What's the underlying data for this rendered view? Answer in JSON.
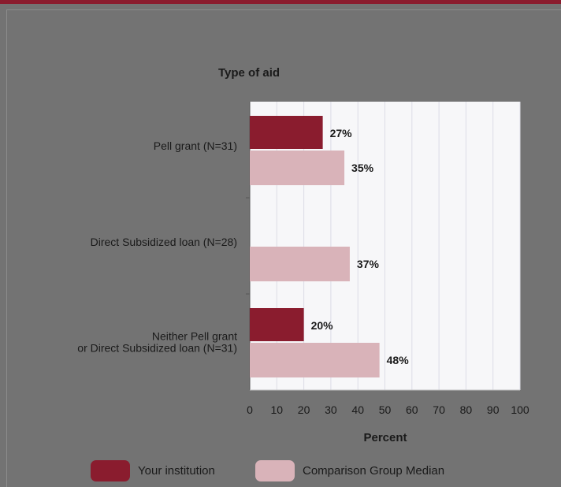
{
  "chart_data": {
    "type": "bar",
    "orientation": "horizontal",
    "title": "Type of aid",
    "xlabel": "Percent",
    "xlim": [
      0,
      100
    ],
    "xticks": [
      0,
      10,
      20,
      30,
      40,
      50,
      60,
      70,
      80,
      90,
      100
    ],
    "grid": true,
    "legend_position": "bottom",
    "categories": [
      [
        "Pell grant  (N=31)"
      ],
      [
        "Direct Subsidized loan (N=28)"
      ],
      [
        "Neither Pell grant",
        "or Direct Subsidized loan (N=31)"
      ]
    ],
    "series": [
      {
        "name": "Your institution",
        "color": "#8a1c2e",
        "values": [
          27,
          null,
          20
        ],
        "labels": [
          "27%",
          "",
          "20%"
        ]
      },
      {
        "name": "Comparison Group Median",
        "color": "#d9b3b9",
        "values": [
          35,
          37,
          48
        ],
        "labels": [
          "35%",
          "37%",
          "48%"
        ]
      }
    ]
  },
  "colors": {
    "page_background": "#737373",
    "plot_background": "#f7f7f9",
    "accent": "#8a1c2e"
  }
}
